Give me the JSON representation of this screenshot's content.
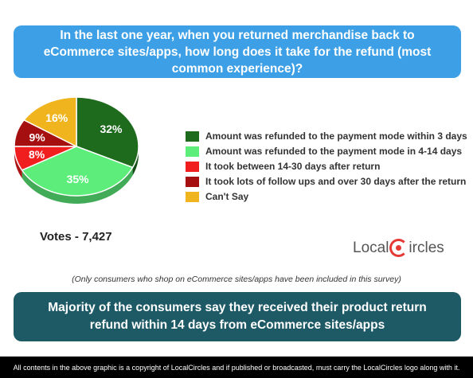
{
  "question": "In the last one year, when you returned merchandise back to eCommerce sites/apps, how long does it take for the refund (most common experience)?",
  "votes_label": "Votes - 7,427",
  "logo": {
    "part1": "Local",
    "part2": "ircles"
  },
  "note": "(Only consumers who shop on eCommerce sites/apps have been included in this survey)",
  "conclusion": "Majority of the consumers say they received their product return refund within 14 days from eCommerce sites/apps",
  "footer": "All contents in the above graphic is a copyright of LocalCircles and if published or broadcasted, must carry the LocalCircles logo along with it.",
  "chart_data": {
    "type": "pie",
    "title": "",
    "slices": [
      {
        "label": "Amount was refunded to the payment mode within 3 days",
        "value": 32,
        "display": "32%",
        "color": "#1e6b1e"
      },
      {
        "label": "Amount was refunded to the payment mode in 4-14 days",
        "value": 35,
        "display": "35%",
        "color": "#5ced7a"
      },
      {
        "label": "It took between 14-30 days after return",
        "value": 8,
        "display": "8%",
        "color": "#f01e1e"
      },
      {
        "label": "It took lots of follow ups and over 30 days after the return",
        "value": 9,
        "display": "9%",
        "color": "#a50f0f"
      },
      {
        "label": "Can't Say",
        "value": 16,
        "display": "16%",
        "color": "#f0b41e"
      }
    ],
    "legend_position": "right"
  }
}
